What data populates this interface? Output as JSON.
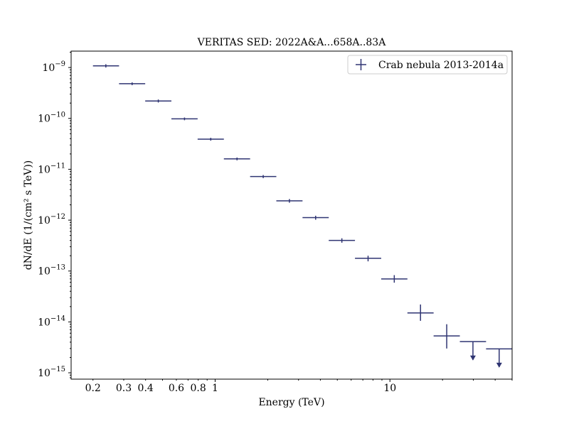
{
  "chart_data": {
    "type": "scatter",
    "title": "VERITAS SED: 2022A&A...658A..83A",
    "xlabel": "Energy (TeV)",
    "ylabel": "dN/dE (1/(cm² s TeV))",
    "xscale": "log",
    "yscale": "log",
    "xlim": [
      0.15,
      50
    ],
    "ylim": [
      7.5e-16,
      2.1e-09
    ],
    "grid": false,
    "legend_position": "top-right",
    "series_color": "#2f3472",
    "x_ticks": [
      {
        "value": 0.2,
        "label": "0.2"
      },
      {
        "value": 0.3,
        "label": "0.3"
      },
      {
        "value": 0.4,
        "label": "0.4"
      },
      {
        "value": 0.6,
        "label": "0.6"
      },
      {
        "value": 0.8,
        "label": "0.8"
      },
      {
        "value": 1,
        "label": "1"
      },
      {
        "value": 10,
        "label": "10"
      }
    ],
    "y_ticks": [
      {
        "exp": -9
      },
      {
        "exp": -10
      },
      {
        "exp": -11
      },
      {
        "exp": -12
      },
      {
        "exp": -13
      },
      {
        "exp": -14
      },
      {
        "exp": -15
      }
    ],
    "series": [
      {
        "name": "Crab nebula 2013-2014a",
        "points": [
          {
            "x": 0.237,
            "xlo": 0.2,
            "xhi": 0.282,
            "y": 1.08e-09,
            "ylo": 1e-09,
            "yhi": 1.16e-09,
            "upper_limit": false
          },
          {
            "x": 0.335,
            "xlo": 0.282,
            "xhi": 0.398,
            "y": 4.8e-10,
            "ylo": 4.5e-10,
            "yhi": 5.1e-10,
            "upper_limit": false
          },
          {
            "x": 0.473,
            "xlo": 0.398,
            "xhi": 0.562,
            "y": 2.2e-10,
            "ylo": 2.05e-10,
            "yhi": 2.35e-10,
            "upper_limit": false
          },
          {
            "x": 0.668,
            "xlo": 0.562,
            "xhi": 0.794,
            "y": 9.8e-11,
            "ylo": 9.2e-11,
            "yhi": 1.04e-10,
            "upper_limit": false
          },
          {
            "x": 0.944,
            "xlo": 0.794,
            "xhi": 1.122,
            "y": 3.9e-11,
            "ylo": 3.65e-11,
            "yhi": 4.15e-11,
            "upper_limit": false
          },
          {
            "x": 1.334,
            "xlo": 1.122,
            "xhi": 1.585,
            "y": 1.6e-11,
            "ylo": 1.5e-11,
            "yhi": 1.7e-11,
            "upper_limit": false
          },
          {
            "x": 1.884,
            "xlo": 1.585,
            "xhi": 2.239,
            "y": 7.2e-12,
            "ylo": 6.7e-12,
            "yhi": 7.7e-12,
            "upper_limit": false
          },
          {
            "x": 2.661,
            "xlo": 2.239,
            "xhi": 3.162,
            "y": 2.4e-12,
            "ylo": 2.2e-12,
            "yhi": 2.6e-12,
            "upper_limit": false
          },
          {
            "x": 3.758,
            "xlo": 3.162,
            "xhi": 4.467,
            "y": 1.12e-12,
            "ylo": 1.02e-12,
            "yhi": 1.22e-12,
            "upper_limit": false
          },
          {
            "x": 5.309,
            "xlo": 4.467,
            "xhi": 6.31,
            "y": 4e-13,
            "ylo": 3.6e-13,
            "yhi": 4.4e-13,
            "upper_limit": false
          },
          {
            "x": 7.499,
            "xlo": 6.31,
            "xhi": 8.913,
            "y": 1.78e-13,
            "ylo": 1.55e-13,
            "yhi": 2e-13,
            "upper_limit": false
          },
          {
            "x": 10.59,
            "xlo": 8.913,
            "xhi": 12.59,
            "y": 7e-14,
            "ylo": 5.9e-14,
            "yhi": 8.3e-14,
            "upper_limit": false
          },
          {
            "x": 14.96,
            "xlo": 12.59,
            "xhi": 17.78,
            "y": 1.5e-14,
            "ylo": 1.05e-14,
            "yhi": 2.2e-14,
            "upper_limit": false
          },
          {
            "x": 21.13,
            "xlo": 17.78,
            "xhi": 25.12,
            "y": 5.3e-15,
            "ylo": 3e-15,
            "yhi": 9e-15,
            "upper_limit": false
          },
          {
            "x": 29.85,
            "xlo": 25.12,
            "xhi": 35.48,
            "y": 4.1e-15,
            "ylo": 1.8e-15,
            "yhi": 4.1e-15,
            "upper_limit": true
          },
          {
            "x": 42.17,
            "xlo": 35.48,
            "xhi": 50.12,
            "y": 2.95e-15,
            "ylo": 1.3e-15,
            "yhi": 2.95e-15,
            "upper_limit": true
          }
        ]
      }
    ]
  }
}
